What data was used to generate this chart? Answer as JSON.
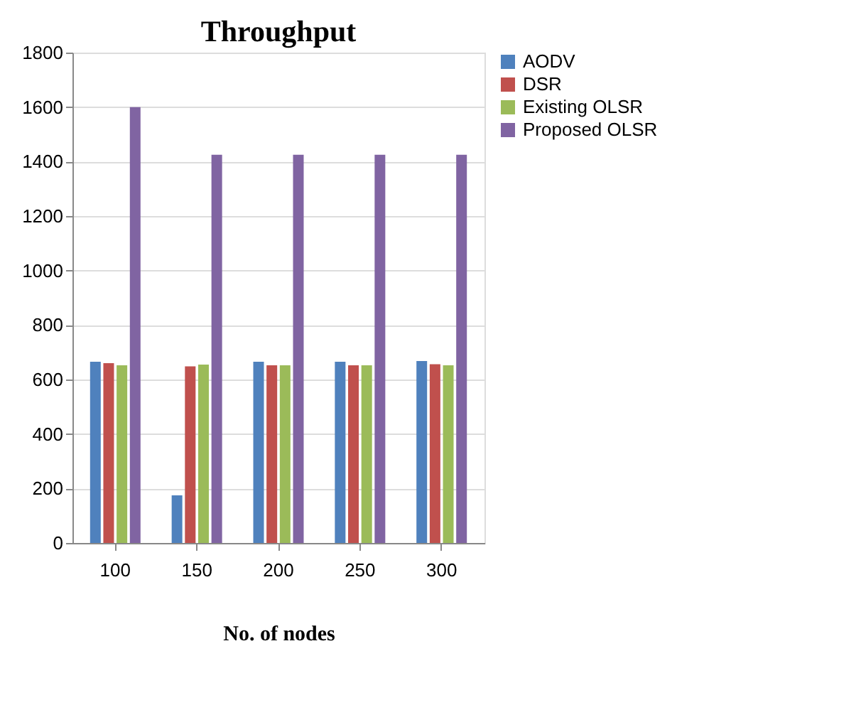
{
  "chart_data": {
    "type": "bar",
    "title": "Throughput",
    "xlabel": "No. of nodes",
    "categories": [
      "100",
      "150",
      "200",
      "250",
      "300"
    ],
    "series": [
      {
        "name": "AODV",
        "color": "#4f81bd",
        "values": [
          665,
          175,
          665,
          665,
          668
        ]
      },
      {
        "name": "DSR",
        "color": "#c0504d",
        "values": [
          660,
          648,
          652,
          652,
          656
        ]
      },
      {
        "name": "Existing OLSR",
        "color": "#9bbb59",
        "values": [
          652,
          655,
          652,
          652,
          652
        ]
      },
      {
        "name": "Proposed OLSR",
        "color": "#8064a2",
        "values": [
          1600,
          1425,
          1425,
          1425,
          1425
        ]
      }
    ],
    "ylim": [
      0,
      1800
    ],
    "yticks": [
      0,
      200,
      400,
      600,
      800,
      1000,
      1200,
      1400,
      1600,
      1800
    ],
    "grid": "y",
    "legend": "right"
  }
}
